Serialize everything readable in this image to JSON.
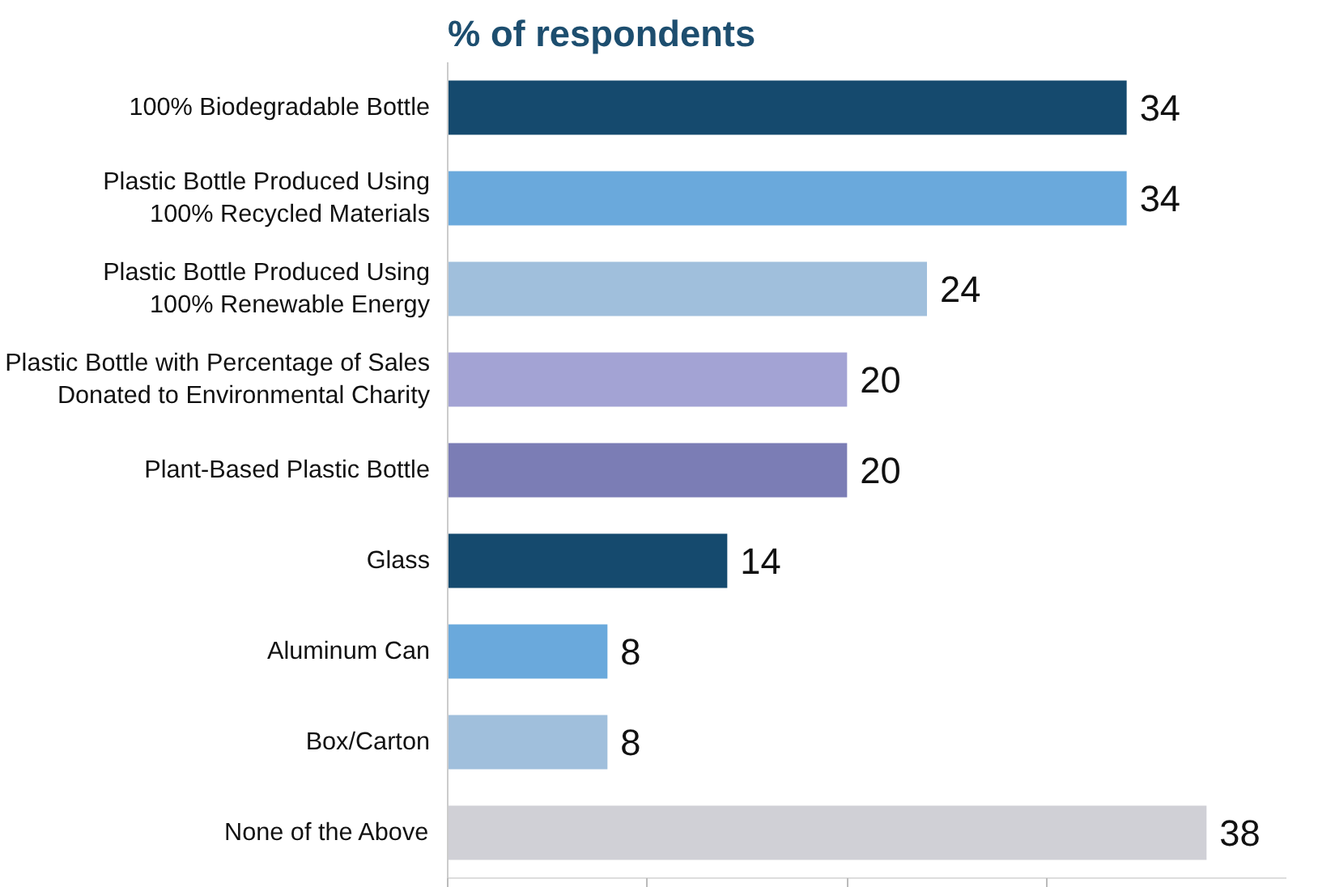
{
  "chart_data": {
    "type": "bar",
    "orientation": "horizontal",
    "title": "% of respondents",
    "categories": [
      "100% Biodegradable Bottle",
      "Plastic Bottle Produced Using\n100% Recycled Materials",
      "Plastic Bottle Produced Using\n100% Renewable Energy",
      "Plastic Bottle with Percentage of Sales\nDonated to Environmental Charity",
      "Plant-Based Plastic Bottle",
      "Glass",
      "Aluminum Can",
      "Box/Carton",
      "None of the Above"
    ],
    "values": [
      34,
      34,
      24,
      20,
      20,
      14,
      8,
      8,
      38
    ],
    "colors": [
      "#154a6e",
      "#6aa9dc",
      "#a0bfdc",
      "#a3a3d4",
      "#7b7db5",
      "#154a6e",
      "#6aa9dc",
      "#a0bfdc",
      "#d0d0d6"
    ],
    "xticks": [
      {
        "value": 0,
        "label": null
      },
      {
        "value": 10,
        "label": null
      },
      {
        "value": 20,
        "label": null
      },
      {
        "value": 30,
        "label": null
      }
    ],
    "xlim": [
      0,
      42
    ],
    "tick_labels": "y",
    "data_labels": true,
    "grid": false
  }
}
